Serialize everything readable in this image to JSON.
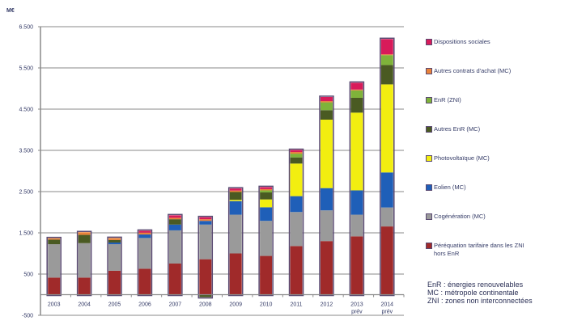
{
  "chart_data": {
    "type": "bar",
    "stacked": true,
    "unit_label": "M€",
    "title": "",
    "xlabel": "",
    "ylabel": "M€",
    "ylim": [
      -500,
      6500
    ],
    "yticks": [
      -500,
      500,
      1500,
      2500,
      3500,
      4500,
      5500,
      6500
    ],
    "ytick_labels": [
      "-500",
      "500",
      "1.500",
      "2.500",
      "3.500",
      "4.500",
      "5.500",
      "6.500"
    ],
    "grid": true,
    "legend_position": "right",
    "categories": [
      "2003",
      "2004",
      "2005",
      "2006",
      "2007",
      "2008",
      "2009",
      "2010",
      "2011",
      "2012",
      "2013 prév",
      "2014 prév"
    ],
    "category_lines": [
      [
        "2003"
      ],
      [
        "2004"
      ],
      [
        "2005"
      ],
      [
        "2006"
      ],
      [
        "2007"
      ],
      [
        "2008"
      ],
      [
        "2009"
      ],
      [
        "2010"
      ],
      [
        "2011"
      ],
      [
        "2012"
      ],
      [
        "2013",
        "prév"
      ],
      [
        "2014",
        "prév"
      ]
    ],
    "series": [
      {
        "name": "Péréquation tarifaire dans les ZNI hors EnR",
        "color": "#a02a2a",
        "values": [
          415,
          415,
          580,
          630,
          755,
          860,
          1000,
          940,
          1180,
          1300,
          1415,
          1655
        ]
      },
      {
        "name": "Cogénération (MC)",
        "color": "#9a9a9a",
        "values": [
          810,
          835,
          645,
          745,
          805,
          840,
          940,
          850,
          825,
          745,
          525,
          460
        ]
      },
      {
        "name": "Eolien (MC)",
        "color": "#1f5fb8",
        "values": [
          0,
          0,
          40,
          85,
          140,
          90,
          330,
          330,
          385,
          540,
          590,
          850
        ]
      },
      {
        "name": "Photovoltaïque (MC)",
        "color": "#f2ee10",
        "values": [
          0,
          0,
          0,
          0,
          0,
          0,
          30,
          190,
          790,
          1660,
          1885,
          2135
        ]
      },
      {
        "name": "Autres EnR (MC)",
        "color": "#4a5a22",
        "values": [
          110,
          200,
          60,
          0,
          130,
          -60,
          190,
          170,
          150,
          230,
          360,
          470
        ]
      },
      {
        "name": "EnR (ZNI)",
        "color": "#7fb33a",
        "values": [
          0,
          0,
          0,
          0,
          0,
          0,
          0,
          50,
          90,
          190,
          180,
          240
        ]
      },
      {
        "name": "Autres contrats d'achat (MC)",
        "color": "#e8823a",
        "values": [
          35,
          65,
          50,
          45,
          35,
          40,
          35,
          30,
          40,
          30,
          20,
          20
        ]
      },
      {
        "name": "Dispositions sociales",
        "color": "#d81b5a",
        "values": [
          0,
          0,
          0,
          45,
          60,
          50,
          50,
          50,
          50,
          100,
          165,
          370
        ]
      }
    ],
    "legend_order": [
      7,
      6,
      5,
      4,
      3,
      2,
      1,
      0
    ],
    "legend_lines": {
      "0": [
        "Péréquation tarifaire dans les ZNI",
        "hors EnR"
      ]
    },
    "notes": [
      "EnR : énergies renouvelables",
      "MC : métropole continentale",
      "ZNI : zones non interconnectées"
    ]
  }
}
